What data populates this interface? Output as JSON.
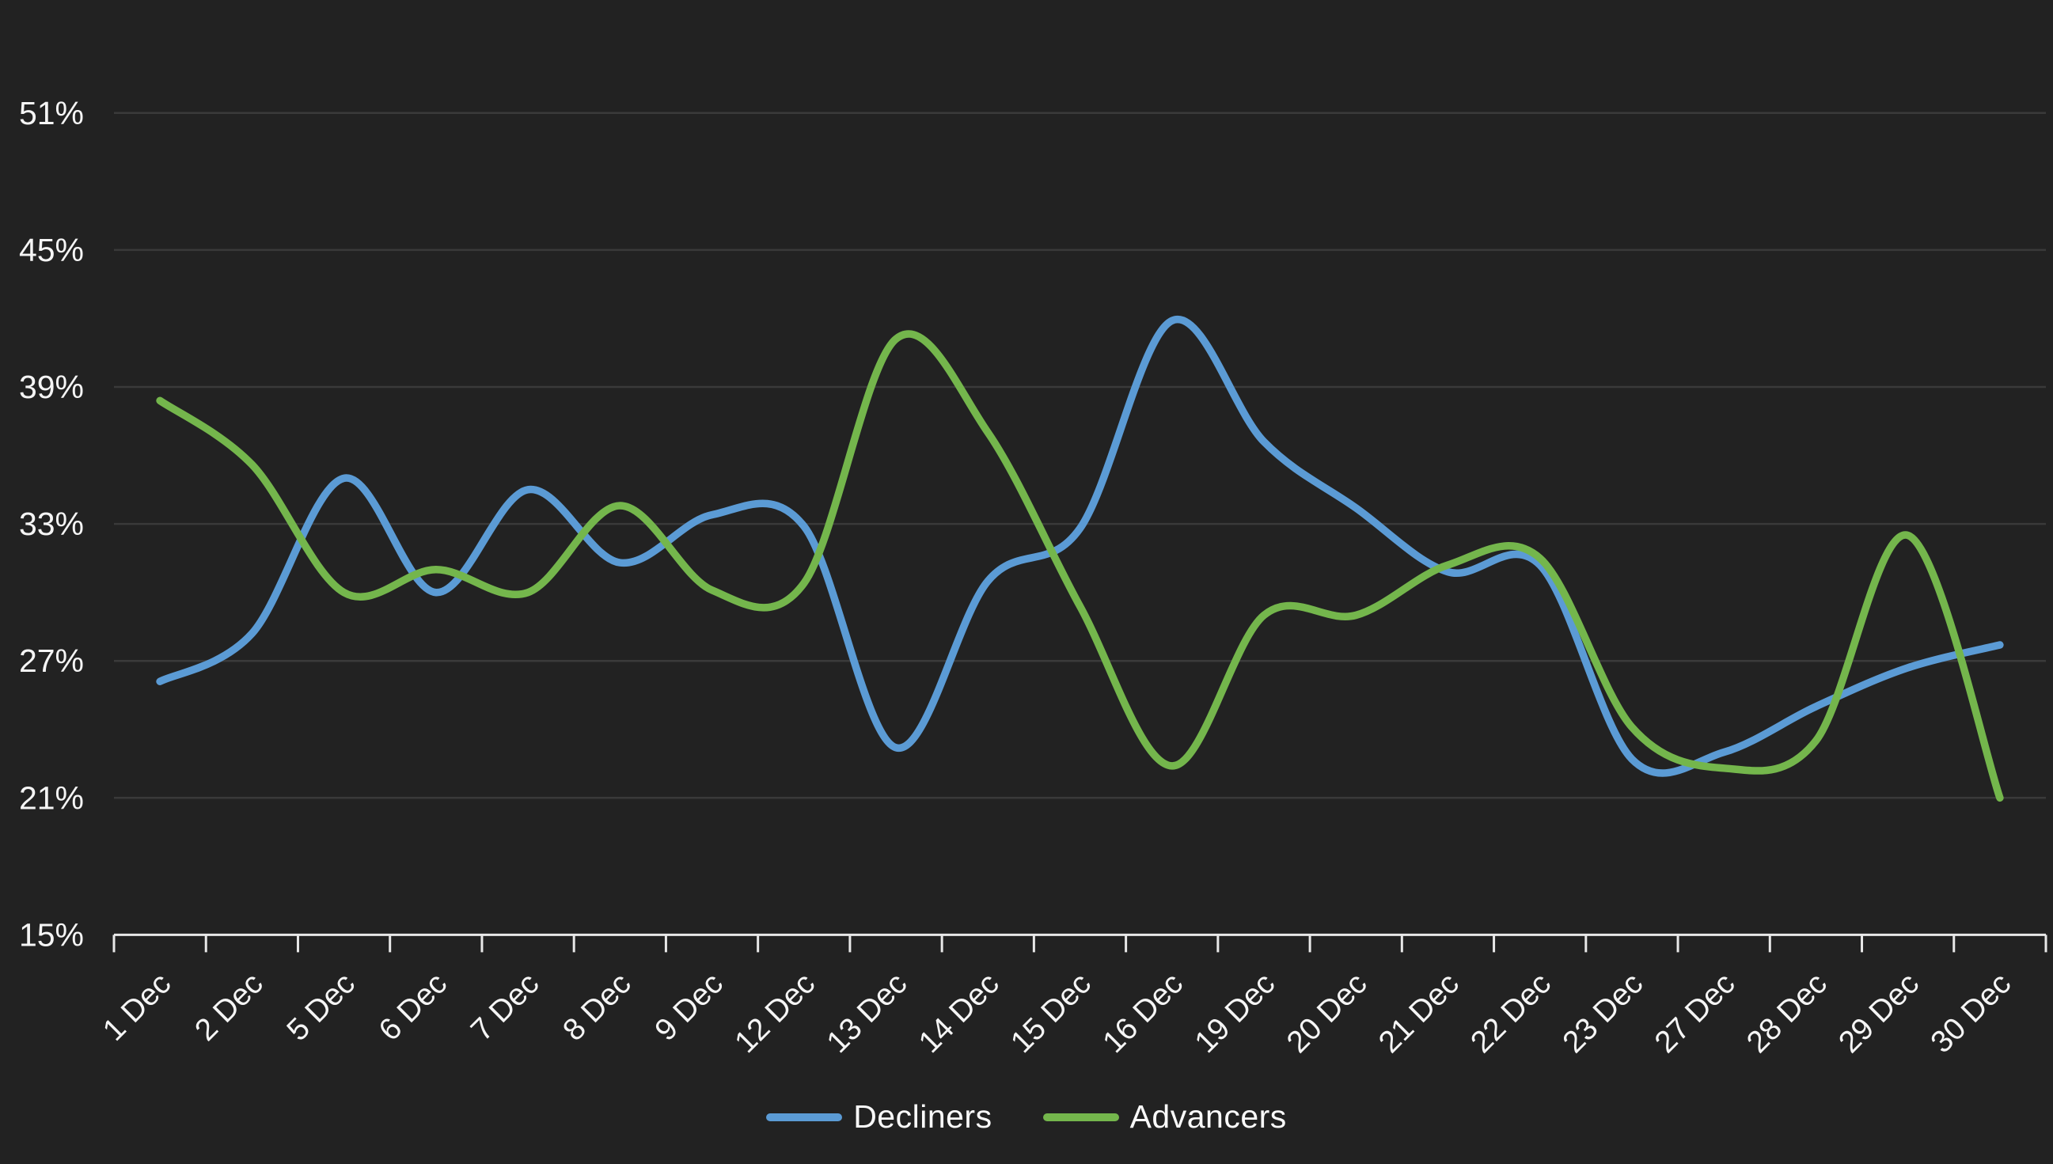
{
  "chart_data": {
    "type": "line",
    "title": "",
    "categories": [
      "1 Dec",
      "2 Dec",
      "5 Dec",
      "6 Dec",
      "7 Dec",
      "8 Dec",
      "9 Dec",
      "12 Dec",
      "13 Dec",
      "14 Dec",
      "15 Dec",
      "16 Dec",
      "19 Dec",
      "20 Dec",
      "21 Dec",
      "22 Dec",
      "23 Dec",
      "27 Dec",
      "28 Dec",
      "29 Dec",
      "30 Dec"
    ],
    "series": [
      {
        "name": "Decliners",
        "color": "#5b9bd5",
        "values": [
          26.1,
          28.2,
          35.0,
          30.0,
          34.5,
          31.3,
          33.4,
          32.9,
          23.2,
          30.5,
          32.8,
          41.9,
          36.6,
          33.7,
          30.9,
          31.2,
          22.7,
          23.0,
          25.0,
          26.7,
          27.7
        ]
      },
      {
        "name": "Advancers",
        "color": "#74b64c",
        "values": [
          38.4,
          35.6,
          30.0,
          31.0,
          30.0,
          33.8,
          30.1,
          30.4,
          41.1,
          37.0,
          29.4,
          22.4,
          29.0,
          29.0,
          31.2,
          31.5,
          24.1,
          22.3,
          23.5,
          32.5,
          21.0
        ]
      }
    ],
    "xlabel": "",
    "ylabel": "",
    "y_axis": {
      "min": 15,
      "max": 51,
      "tick_labels": [
        "51%",
        "45%",
        "39%",
        "33%",
        "27%",
        "21%",
        "15%"
      ],
      "tick_values": [
        51,
        45,
        39,
        33,
        27,
        21,
        15
      ],
      "gridline_values": [
        51,
        45,
        39,
        33,
        27,
        21
      ]
    },
    "x_axis": {
      "label_rotation": -45
    },
    "legend": {
      "position": "bottom"
    },
    "grid_on": true,
    "colors": {
      "background": "#222222",
      "gridline": "#3a3a3a",
      "axis": "#e8e8e8",
      "tick_text": "#f5f5f5"
    }
  }
}
